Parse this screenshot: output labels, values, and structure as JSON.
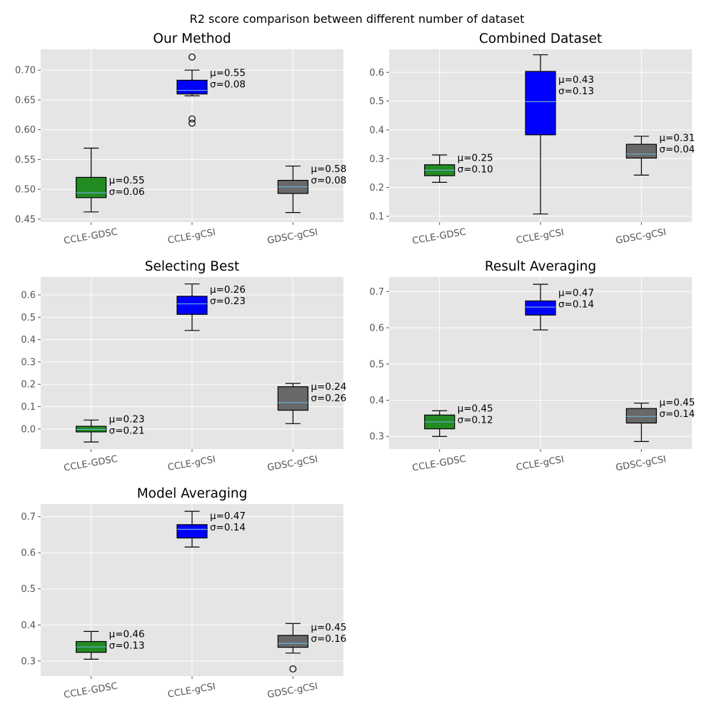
{
  "suptitle": "R2 score comparison between different number of dataset",
  "colors": {
    "panel_bg": "#e5e5e5",
    "grid": "#ffffff",
    "tick_text": "#555555",
    "box_edge": "#000000",
    "median_line": "#6aaed6",
    "CCLE-GDSC": "#228b22",
    "CCLE-gCSI": "#0000ff",
    "GDSC-gCSI": "#696969"
  },
  "chart_data": [
    {
      "type": "box",
      "title": "Our Method",
      "categories": [
        "CCLE-GDSC",
        "CCLE-gCSI",
        "GDSC-gCSI"
      ],
      "yticks": [
        0.45,
        0.5,
        0.55,
        0.6,
        0.65,
        0.7
      ],
      "ytick_labels": [
        "0.45",
        "0.50",
        "0.55",
        "0.60",
        "0.65",
        "0.70"
      ],
      "ylim": [
        0.445,
        0.735
      ],
      "boxes": [
        {
          "whislo": 0.462,
          "q1": 0.486,
          "med": 0.494,
          "q3": 0.52,
          "whishi": 0.569,
          "fliers": []
        },
        {
          "whislo": 0.657,
          "q1": 0.66,
          "med": 0.666,
          "q3": 0.683,
          "whishi": 0.7,
          "fliers": [
            0.722,
            0.618,
            0.611
          ]
        },
        {
          "whislo": 0.461,
          "q1": 0.493,
          "med": 0.504,
          "q3": 0.515,
          "whishi": 0.539,
          "fliers": []
        }
      ],
      "annotations": [
        {
          "mu": "μ=0.55",
          "sigma": "σ=0.06",
          "anchor": 0.51
        },
        {
          "mu": "μ=0.55",
          "sigma": "σ=0.08",
          "anchor": 0.69
        },
        {
          "mu": "μ=0.58",
          "sigma": "σ=0.08",
          "anchor": 0.529
        }
      ]
    },
    {
      "type": "box",
      "title": "Combined Dataset",
      "categories": [
        "CCLE-GDSC",
        "CCLE-gCSI",
        "GDSC-gCSI"
      ],
      "yticks": [
        0.1,
        0.2,
        0.3,
        0.4,
        0.5,
        0.6
      ],
      "ytick_labels": [
        "0.1",
        "0.2",
        "0.3",
        "0.4",
        "0.5",
        "0.6"
      ],
      "ylim": [
        0.08,
        0.68
      ],
      "boxes": [
        {
          "whislo": 0.218,
          "q1": 0.241,
          "med": 0.26,
          "q3": 0.279,
          "whishi": 0.313,
          "fliers": []
        },
        {
          "whislo": 0.108,
          "q1": 0.383,
          "med": 0.498,
          "q3": 0.603,
          "whishi": 0.661,
          "fliers": []
        },
        {
          "whislo": 0.243,
          "q1": 0.302,
          "med": 0.316,
          "q3": 0.35,
          "whishi": 0.378,
          "fliers": []
        }
      ],
      "annotations": [
        {
          "mu": "μ=0.25",
          "sigma": "σ=0.10",
          "anchor": 0.292
        },
        {
          "mu": "μ=0.43",
          "sigma": "σ=0.13",
          "anchor": 0.563
        },
        {
          "mu": "μ=0.31",
          "sigma": "σ=0.04",
          "anchor": 0.362
        }
      ]
    },
    {
      "type": "box",
      "title": "Selecting Best",
      "categories": [
        "CCLE-GDSC",
        "CCLE-gCSI",
        "GDSC-gCSI"
      ],
      "yticks": [
        0.0,
        0.1,
        0.2,
        0.3,
        0.4,
        0.5,
        0.6
      ],
      "ytick_labels": [
        "0.0",
        "0.1",
        "0.2",
        "0.3",
        "0.4",
        "0.5",
        "0.6"
      ],
      "ylim": [
        -0.09,
        0.68
      ],
      "boxes": [
        {
          "whislo": -0.058,
          "q1": -0.013,
          "med": -0.002,
          "q3": 0.012,
          "whishi": 0.04,
          "fliers": []
        },
        {
          "whislo": 0.441,
          "q1": 0.513,
          "med": 0.56,
          "q3": 0.594,
          "whishi": 0.649,
          "fliers": []
        },
        {
          "whislo": 0.024,
          "q1": 0.084,
          "med": 0.118,
          "q3": 0.189,
          "whishi": 0.204,
          "fliers": []
        }
      ],
      "annotations": [
        {
          "mu": "μ=0.23",
          "sigma": "σ=0.21",
          "anchor": 0.03
        },
        {
          "mu": "μ=0.26",
          "sigma": "σ=0.23",
          "anchor": 0.61
        },
        {
          "mu": "μ=0.24",
          "sigma": "σ=0.26",
          "anchor": 0.175
        }
      ]
    },
    {
      "type": "box",
      "title": "Result Averaging",
      "categories": [
        "CCLE-GDSC",
        "CCLE-gCSI",
        "GDSC-gCSI"
      ],
      "yticks": [
        0.3,
        0.4,
        0.5,
        0.6,
        0.7
      ],
      "ytick_labels": [
        "0.3",
        "0.4",
        "0.5",
        "0.6",
        "0.7"
      ],
      "ylim": [
        0.265,
        0.74
      ],
      "boxes": [
        {
          "whislo": 0.3,
          "q1": 0.321,
          "med": 0.34,
          "q3": 0.359,
          "whishi": 0.371,
          "fliers": []
        },
        {
          "whislo": 0.594,
          "q1": 0.635,
          "med": 0.657,
          "q3": 0.674,
          "whishi": 0.72,
          "fliers": []
        },
        {
          "whislo": 0.286,
          "q1": 0.337,
          "med": 0.355,
          "q3": 0.377,
          "whishi": 0.392,
          "fliers": []
        }
      ],
      "annotations": [
        {
          "mu": "μ=0.45",
          "sigma": "σ=0.12",
          "anchor": 0.368
        },
        {
          "mu": "μ=0.47",
          "sigma": "σ=0.14",
          "anchor": 0.688
        },
        {
          "mu": "μ=0.45",
          "sigma": "σ=0.14",
          "anchor": 0.385
        }
      ]
    },
    {
      "type": "box",
      "title": "Model Averaging",
      "categories": [
        "CCLE-GDSC",
        "CCLE-gCSI",
        "GDSC-gCSI"
      ],
      "yticks": [
        0.3,
        0.4,
        0.5,
        0.6,
        0.7
      ],
      "ytick_labels": [
        "0.3",
        "0.4",
        "0.5",
        "0.6",
        "0.7"
      ],
      "ylim": [
        0.258,
        0.735
      ],
      "boxes": [
        {
          "whislo": 0.305,
          "q1": 0.324,
          "med": 0.339,
          "q3": 0.354,
          "whishi": 0.382,
          "fliers": []
        },
        {
          "whislo": 0.616,
          "q1": 0.641,
          "med": 0.665,
          "q3": 0.678,
          "whishi": 0.715,
          "fliers": []
        },
        {
          "whislo": 0.322,
          "q1": 0.338,
          "med": 0.349,
          "q3": 0.371,
          "whishi": 0.404,
          "fliers": [
            0.278
          ]
        }
      ],
      "annotations": [
        {
          "mu": "μ=0.46",
          "sigma": "σ=0.13",
          "anchor": 0.366
        },
        {
          "mu": "μ=0.47",
          "sigma": "σ=0.14",
          "anchor": 0.693
        },
        {
          "mu": "μ=0.45",
          "sigma": "σ=0.16",
          "anchor": 0.385
        }
      ]
    }
  ]
}
